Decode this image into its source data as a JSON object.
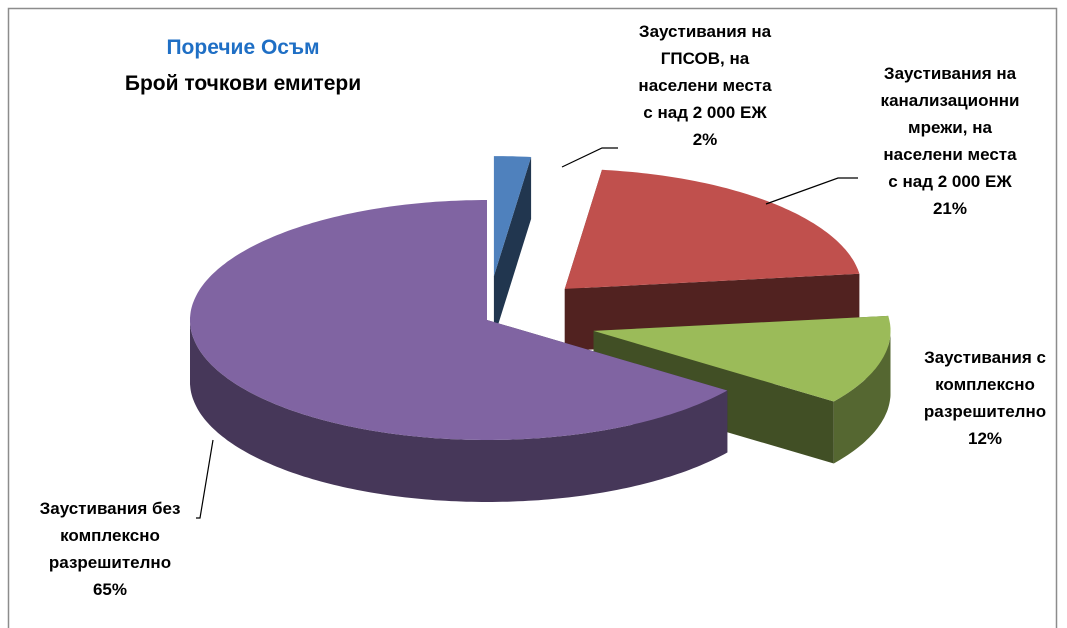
{
  "chart_data": {
    "type": "pie",
    "title": "Поречие Осъм",
    "subtitle": "Брой точкови емитери",
    "categories": [
      "Заустивания  на\nГПСОВ, на\nнаселени места\nс над 2 000 ЕЖ",
      "Заустивания  на\nканализационни\nмрежи, на\nнаселени места\nс над 2 000 ЕЖ",
      "Заустивания  с\nкомплексно\nразрешително",
      "Заустивания  без\nкомплексно\nразрешително"
    ],
    "values": [
      2,
      21,
      12,
      65
    ],
    "value_labels": [
      "2%",
      "21%",
      "12%",
      "65%"
    ],
    "colors": [
      "#4f81bd",
      "#c0504d",
      "#9bbb59",
      "#8064a2"
    ]
  }
}
